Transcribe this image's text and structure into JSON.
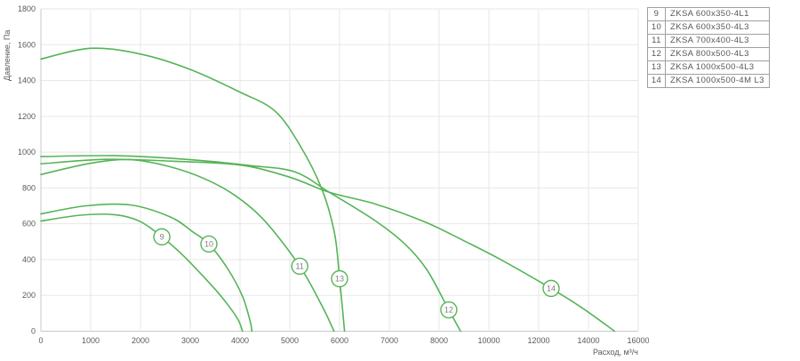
{
  "legend": {
    "rows": [
      {
        "num": "9",
        "label": "ZKSA 600x350-4L1"
      },
      {
        "num": "10",
        "label": "ZKSA 600x350-4L3"
      },
      {
        "num": "11",
        "label": "ZKSA 700x400-4L3"
      },
      {
        "num": "12",
        "label": "ZKSA 800x500-4L3"
      },
      {
        "num": "13",
        "label": "ZKSA 1000x500-4L3"
      },
      {
        "num": "14",
        "label": "ZKSA 1000x500-4M L3"
      }
    ]
  },
  "chart_data": {
    "type": "line",
    "title": "",
    "xlabel": "Расход, м³/ч",
    "ylabel": "Давление, Па",
    "ylim": [
      0,
      1800
    ],
    "y_ticks": [
      0,
      200,
      400,
      600,
      800,
      1000,
      1200,
      1400,
      1600,
      1800
    ],
    "x_ticks": [
      0,
      1000,
      2000,
      3000,
      4000,
      5000,
      6000,
      7000,
      8000,
      10000,
      12000,
      14000,
      16000
    ],
    "x_scale_note": "gridlines evenly spaced; 1000 m3/h per division up to 8000, then 2000 m3/h per division",
    "grid": true,
    "legend_position": "top-right table",
    "line_color": "#55b457",
    "grid_color": "#e7e7e7",
    "axis_color": "#c8c8c8",
    "tick_color": "#595959",
    "marker_text_color": "#7f7f7f",
    "series": [
      {
        "id": "9",
        "name": "ZKSA 600x350-4L1",
        "marker": {
          "label": "9",
          "at": [
            2430,
            527
          ]
        },
        "points": [
          [
            0,
            615
          ],
          [
            800,
            648
          ],
          [
            1500,
            650
          ],
          [
            2000,
            612
          ],
          [
            2430,
            527
          ],
          [
            2850,
            425
          ],
          [
            3250,
            310
          ],
          [
            3650,
            185
          ],
          [
            3950,
            70
          ],
          [
            4050,
            0
          ]
        ]
      },
      {
        "id": "10",
        "name": "ZKSA 600x350-4L3",
        "marker": {
          "label": "10",
          "at": [
            3375,
            487
          ]
        },
        "points": [
          [
            0,
            655
          ],
          [
            900,
            700
          ],
          [
            1800,
            705
          ],
          [
            2600,
            638
          ],
          [
            3050,
            555
          ],
          [
            3375,
            487
          ],
          [
            3750,
            350
          ],
          [
            4050,
            195
          ],
          [
            4200,
            60
          ],
          [
            4240,
            0
          ]
        ]
      },
      {
        "id": "11",
        "name": "ZKSA 700x400-4L3",
        "marker": {
          "label": "11",
          "at": [
            5200,
            363
          ]
        },
        "points": [
          [
            0,
            875
          ],
          [
            1000,
            938
          ],
          [
            1800,
            958
          ],
          [
            2600,
            918
          ],
          [
            3300,
            850
          ],
          [
            3900,
            758
          ],
          [
            4500,
            615
          ],
          [
            5200,
            363
          ],
          [
            5650,
            140
          ],
          [
            5890,
            0
          ]
        ]
      },
      {
        "id": "12",
        "name": "ZKSA 800x500-4L3",
        "marker": {
          "label": "12",
          "at": [
            8390,
            119
          ]
        },
        "points": [
          [
            0,
            975
          ],
          [
            1500,
            980
          ],
          [
            3000,
            958
          ],
          [
            4200,
            925
          ],
          [
            5100,
            890
          ],
          [
            5800,
            775
          ],
          [
            6700,
            620
          ],
          [
            7300,
            490
          ],
          [
            7750,
            345
          ],
          [
            8390,
            119
          ],
          [
            8860,
            0
          ]
        ]
      },
      {
        "id": "13",
        "name": "ZKSA 1000x500-4L3",
        "marker": {
          "label": "13",
          "at": [
            6000,
            293
          ]
        },
        "points": [
          [
            0,
            1520
          ],
          [
            1000,
            1580
          ],
          [
            2000,
            1548
          ],
          [
            3000,
            1462
          ],
          [
            4000,
            1335
          ],
          [
            4700,
            1230
          ],
          [
            5200,
            1040
          ],
          [
            5650,
            790
          ],
          [
            5900,
            545
          ],
          [
            6000,
            293
          ],
          [
            6060,
            120
          ],
          [
            6100,
            0
          ]
        ]
      },
      {
        "id": "14",
        "name": "ZKSA 1000x500-4M L3",
        "marker": {
          "label": "14",
          "at": [
            12500,
            239
          ]
        },
        "points": [
          [
            0,
            935
          ],
          [
            1300,
            960
          ],
          [
            2600,
            950
          ],
          [
            4000,
            928
          ],
          [
            5000,
            860
          ],
          [
            5800,
            775
          ],
          [
            6700,
            712
          ],
          [
            7700,
            612
          ],
          [
            9000,
            505
          ],
          [
            10500,
            398
          ],
          [
            12500,
            239
          ],
          [
            13800,
            125
          ],
          [
            15050,
            0
          ]
        ]
      }
    ]
  }
}
